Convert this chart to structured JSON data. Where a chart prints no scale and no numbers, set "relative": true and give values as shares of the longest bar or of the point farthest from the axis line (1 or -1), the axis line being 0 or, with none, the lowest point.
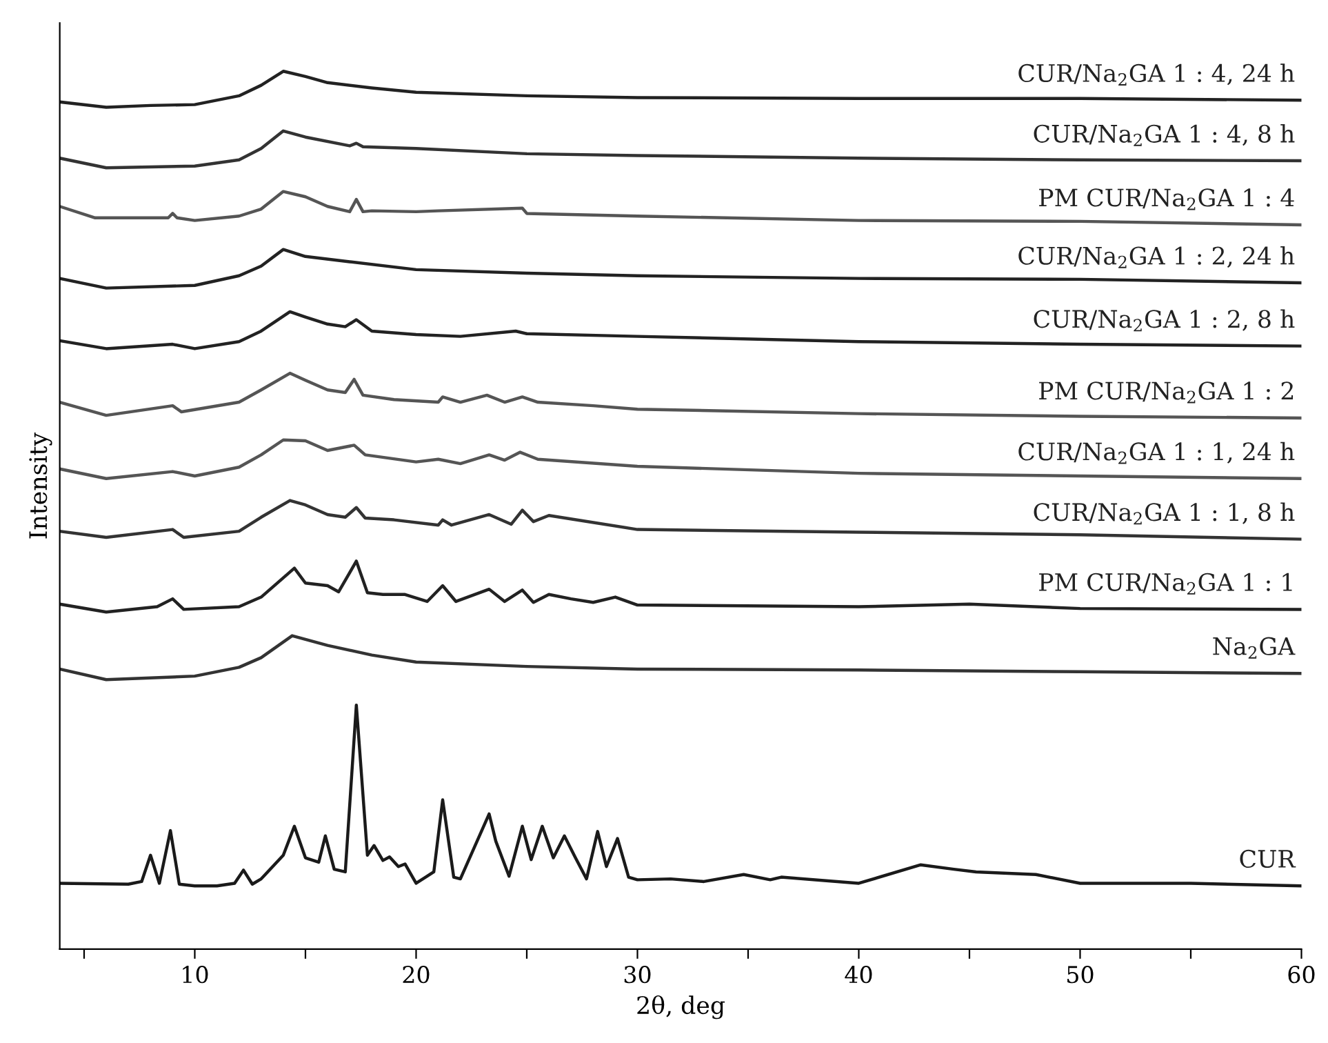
{
  "chart_data": {
    "type": "line",
    "relative": true,
    "xlabel": "2θ, deg",
    "ylabel": "Intensity",
    "xlim": [
      3.9,
      60
    ],
    "xticks": [
      {
        "value": 5,
        "label": null
      },
      10,
      {
        "value": 15,
        "label": null
      },
      20,
      {
        "value": 25,
        "label": null
      },
      30,
      {
        "value": 35,
        "label": null
      },
      40,
      {
        "value": 45,
        "label": null
      },
      50,
      {
        "value": 55,
        "label": null
      },
      60
    ],
    "series": [
      {
        "name": "CUR/Na$_{2}$GA 1 : 4, 24 h",
        "color": "#222222",
        "x": [
          3.9,
          6,
          8,
          10,
          12,
          13,
          14,
          15,
          16,
          18,
          20,
          25,
          30,
          40,
          50,
          60
        ],
        "values": [
          0.965,
          0.959,
          0.961,
          0.962,
          0.972,
          0.984,
          1.0,
          0.994,
          0.987,
          0.981,
          0.976,
          0.972,
          0.97,
          0.969,
          0.969,
          0.967
        ]
      },
      {
        "name": "CUR/Na$_{2}$GA 1 : 4, 8 h",
        "color": "#333333",
        "x": [
          3.9,
          6,
          10,
          12,
          13,
          14,
          15,
          17,
          17.3,
          17.6,
          20,
          25,
          30,
          40,
          50,
          60
        ],
        "values": [
          0.901,
          0.89,
          0.892,
          0.899,
          0.912,
          0.932,
          0.925,
          0.915,
          0.918,
          0.914,
          0.912,
          0.906,
          0.904,
          0.901,
          0.899,
          0.898
        ]
      },
      {
        "name": "PM CUR/Na$_{2}$GA 1 : 4",
        "color": "#555555",
        "x": [
          3.9,
          5.5,
          8.8,
          9,
          9.2,
          10,
          12,
          13,
          14,
          15,
          16,
          17,
          17.3,
          17.6,
          18,
          20,
          21,
          24.8,
          25,
          30,
          40,
          50,
          60
        ],
        "values": [
          0.846,
          0.833,
          0.833,
          0.838,
          0.833,
          0.83,
          0.835,
          0.843,
          0.863,
          0.857,
          0.846,
          0.84,
          0.854,
          0.84,
          0.841,
          0.84,
          0.841,
          0.844,
          0.838,
          0.835,
          0.83,
          0.829,
          0.825
        ]
      },
      {
        "name": "CUR/Na$_{2}$GA 1 : 2, 24 h",
        "color": "#222222",
        "x": [
          3.9,
          6,
          10,
          12,
          13,
          14,
          15,
          17,
          20,
          25,
          30,
          40,
          50,
          60
        ],
        "values": [
          0.764,
          0.753,
          0.756,
          0.767,
          0.778,
          0.797,
          0.789,
          0.783,
          0.774,
          0.77,
          0.767,
          0.764,
          0.763,
          0.759
        ]
      },
      {
        "name": "CUR/Na$_{2}$GA 1 : 2, 8 h",
        "color": "#222222",
        "x": [
          3.9,
          6,
          9,
          10,
          12,
          13,
          14.3,
          15,
          16,
          16.8,
          17.3,
          18,
          20,
          22,
          24.5,
          25,
          30,
          40,
          50,
          60
        ],
        "values": [
          0.693,
          0.684,
          0.689,
          0.684,
          0.692,
          0.704,
          0.726,
          0.72,
          0.712,
          0.709,
          0.717,
          0.704,
          0.7,
          0.698,
          0.704,
          0.701,
          0.698,
          0.692,
          0.689,
          0.687
        ]
      },
      {
        "name": "PM CUR/Na$_{2}$GA 1 : 2",
        "color": "#555555",
        "x": [
          3.9,
          6,
          9,
          9.4,
          12,
          13,
          14.3,
          15,
          16,
          16.8,
          17.2,
          17.6,
          19,
          21,
          21.2,
          22,
          23.2,
          24,
          24.8,
          25.5,
          28,
          30,
          40,
          50,
          60
        ],
        "values": [
          0.623,
          0.608,
          0.619,
          0.612,
          0.623,
          0.637,
          0.656,
          0.648,
          0.637,
          0.634,
          0.649,
          0.631,
          0.626,
          0.623,
          0.629,
          0.623,
          0.631,
          0.623,
          0.629,
          0.623,
          0.619,
          0.615,
          0.61,
          0.607,
          0.605
        ]
      },
      {
        "name": "CUR/Na$_{2}$GA 1 : 1, 24 h",
        "color": "#555555",
        "x": [
          3.9,
          6,
          9,
          10,
          12,
          13,
          14,
          15,
          16,
          17.2,
          17.7,
          20,
          21,
          22,
          23.3,
          24,
          24.7,
          25.5,
          30,
          40,
          50,
          60
        ],
        "values": [
          0.547,
          0.536,
          0.544,
          0.539,
          0.549,
          0.563,
          0.58,
          0.579,
          0.568,
          0.574,
          0.563,
          0.555,
          0.558,
          0.553,
          0.563,
          0.557,
          0.566,
          0.558,
          0.55,
          0.542,
          0.539,
          0.536
        ]
      },
      {
        "name": "CUR/Na$_{2}$GA 1 : 1, 8 h",
        "color": "#333333",
        "x": [
          3.9,
          6,
          9,
          9.5,
          12,
          13,
          14.3,
          15,
          16,
          16.8,
          17.3,
          17.7,
          19,
          21,
          21.2,
          21.6,
          23.3,
          24.3,
          24.8,
          25.3,
          26,
          30,
          40,
          50,
          60
        ],
        "values": [
          0.476,
          0.469,
          0.478,
          0.469,
          0.476,
          0.492,
          0.511,
          0.506,
          0.495,
          0.492,
          0.503,
          0.491,
          0.489,
          0.483,
          0.489,
          0.483,
          0.495,
          0.484,
          0.5,
          0.487,
          0.494,
          0.478,
          0.475,
          0.472,
          0.467
        ]
      },
      {
        "name": "PM CUR/Na$_{2}$GA 1 : 1",
        "color": "#222222",
        "x": [
          3.9,
          6,
          8.3,
          9,
          9.5,
          12,
          13,
          14.5,
          15,
          16,
          16.5,
          17.3,
          17.8,
          18.5,
          19.5,
          20.5,
          21.2,
          21.8,
          23.3,
          24,
          24.8,
          25.3,
          26,
          27,
          28,
          29,
          30,
          40,
          45,
          50,
          60
        ],
        "values": [
          0.393,
          0.384,
          0.39,
          0.399,
          0.387,
          0.39,
          0.401,
          0.434,
          0.417,
          0.414,
          0.407,
          0.442,
          0.406,
          0.404,
          0.404,
          0.396,
          0.414,
          0.396,
          0.41,
          0.396,
          0.409,
          0.395,
          0.404,
          0.399,
          0.395,
          0.401,
          0.392,
          0.39,
          0.393,
          0.388,
          0.387
        ]
      },
      {
        "name": "Na$_{2}$GA",
        "color": "#333333",
        "x": [
          3.9,
          6,
          10,
          12,
          13,
          14.4,
          16,
          18,
          20,
          25,
          30,
          40,
          50,
          60
        ],
        "values": [
          0.319,
          0.307,
          0.311,
          0.321,
          0.332,
          0.357,
          0.346,
          0.335,
          0.327,
          0.322,
          0.319,
          0.318,
          0.316,
          0.314
        ]
      },
      {
        "name": "CUR",
        "color": "#1a1a1a",
        "x": [
          3.9,
          7,
          7.6,
          8.0,
          8.4,
          8.9,
          9.3,
          10,
          11,
          11.8,
          12.2,
          12.6,
          13,
          14,
          14.5,
          15,
          15.6,
          15.9,
          16.3,
          16.8,
          17.3,
          17.8,
          18.1,
          18.5,
          18.8,
          19.2,
          19.5,
          20,
          20.8,
          21.2,
          21.7,
          22,
          23.3,
          23.6,
          24.2,
          24.8,
          25.2,
          25.7,
          26.2,
          26.7,
          27.2,
          27.7,
          28.2,
          28.6,
          29.1,
          29.6,
          30,
          31.5,
          33,
          34.8,
          36,
          36.5,
          40,
          42.8,
          44.3,
          45.3,
          48,
          50,
          55,
          60
        ],
        "values": [
          0.075,
          0.074,
          0.077,
          0.107,
          0.075,
          0.135,
          0.074,
          0.072,
          0.072,
          0.075,
          0.09,
          0.074,
          0.08,
          0.107,
          0.14,
          0.104,
          0.099,
          0.129,
          0.091,
          0.088,
          0.278,
          0.107,
          0.118,
          0.101,
          0.105,
          0.094,
          0.097,
          0.075,
          0.088,
          0.17,
          0.082,
          0.08,
          0.154,
          0.123,
          0.083,
          0.14,
          0.102,
          0.14,
          0.104,
          0.129,
          0.104,
          0.08,
          0.134,
          0.094,
          0.126,
          0.082,
          0.079,
          0.08,
          0.077,
          0.085,
          0.079,
          0.082,
          0.075,
          0.096,
          0.091,
          0.088,
          0.085,
          0.075,
          0.075,
          0.072
        ]
      }
    ]
  }
}
